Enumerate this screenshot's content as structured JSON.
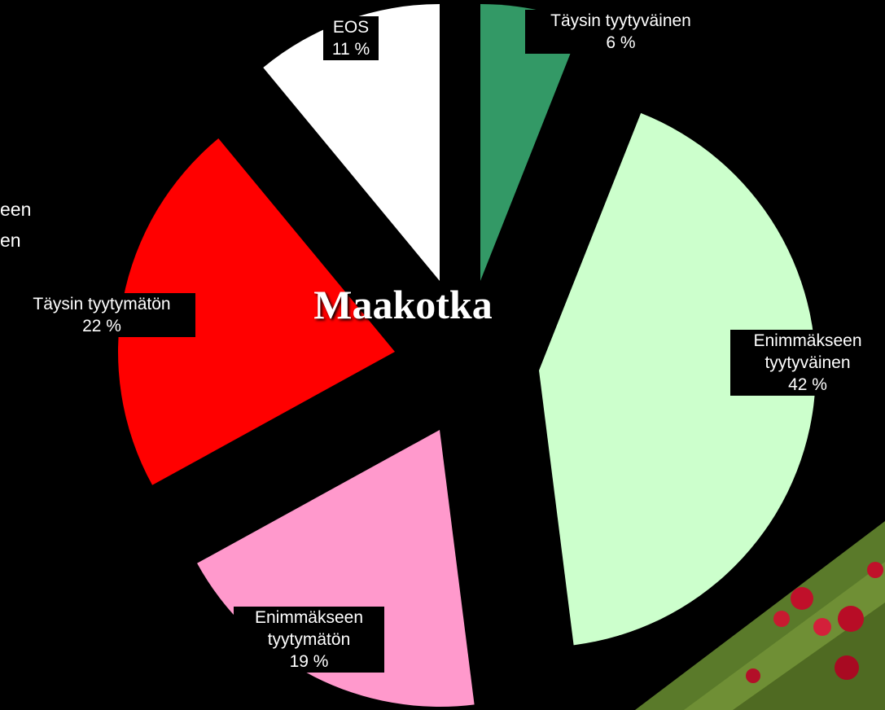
{
  "chart_data": {
    "type": "pie",
    "title": "Maakotka",
    "categories": [
      "Täysin tyytyväinen",
      "Enimmäkseen tyytyväinen",
      "Enimmäkseen tyytymätön",
      "Täysin tyytymätön",
      "EOS"
    ],
    "values": [
      6,
      42,
      19,
      22,
      11
    ],
    "value_labels": [
      "6 %",
      "42 %",
      "19 %",
      "22 %",
      "11 %"
    ],
    "colors": [
      "#339966",
      "#ccffcc",
      "#ff99cc",
      "#ff0000",
      "#ffffff"
    ]
  },
  "cropped_label_lines": [
    "een",
    "en"
  ]
}
